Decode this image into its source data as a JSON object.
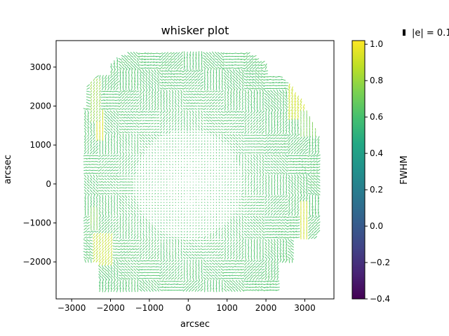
{
  "chart_data": {
    "type": "scatter",
    "subtype": "whisker",
    "title": "whisker plot",
    "xlabel": "arcsec",
    "ylabel": "arcsec",
    "xlim": [
      -3400,
      3750
    ],
    "ylim": [
      -2950,
      3680
    ],
    "xticks": [
      -3000,
      -2000,
      -1000,
      0,
      1000,
      2000,
      3000
    ],
    "yticks": [
      -2000,
      -1000,
      0,
      1000,
      2000,
      3000
    ],
    "grid": false,
    "colorbar": {
      "label": "FWHM",
      "range": [
        -0.4,
        1.02
      ],
      "ticks": [
        -0.4,
        -0.2,
        0.0,
        0.2,
        0.4,
        0.6,
        0.8,
        1.0
      ],
      "tick_labels": [
        "−0.4",
        "−0.2",
        "0.0",
        "0.2",
        "0.4",
        "0.6",
        "0.8",
        "1.0"
      ],
      "colormap": "viridis"
    },
    "legend": {
      "placement": "upper-right, outside plot",
      "label": "|e| = 0.1"
    },
    "field": {
      "grid_step": 75,
      "typical_fwhm": 0.62,
      "high_fwhm_patches": [
        {
          "x": [
            -2400,
            -2150
          ],
          "y": [
            1150,
            1900
          ],
          "fwhm": 0.93,
          "e": 0.16,
          "angle_deg": 90
        },
        {
          "x": [
            -2550,
            -2300
          ],
          "y": [
            -1200,
            -600
          ],
          "fwhm": 0.72,
          "e": 0.12,
          "angle_deg": 90
        },
        {
          "x": [
            -2450,
            -1950
          ],
          "y": [
            -2100,
            -1300
          ],
          "fwhm": 0.88,
          "e": 0.12,
          "angle_deg": 60
        },
        {
          "x": [
            -2550,
            -2250
          ],
          "y": [
            1600,
            2700
          ],
          "fwhm": 0.78,
          "e": 0.1,
          "angle_deg": 65
        },
        {
          "x": [
            2550,
            3000
          ],
          "y": [
            1700,
            2600
          ],
          "fwhm": 0.9,
          "e": 0.14,
          "angle_deg": 70
        },
        {
          "x": [
            2850,
            3100
          ],
          "y": [
            -1400,
            -450
          ],
          "fwhm": 0.92,
          "e": 0.14,
          "angle_deg": 90
        },
        {
          "x": [
            2900,
            3300
          ],
          "y": [
            1250,
            1900
          ],
          "fwhm": 0.72,
          "e": 0.1,
          "angle_deg": 90
        }
      ]
    }
  }
}
